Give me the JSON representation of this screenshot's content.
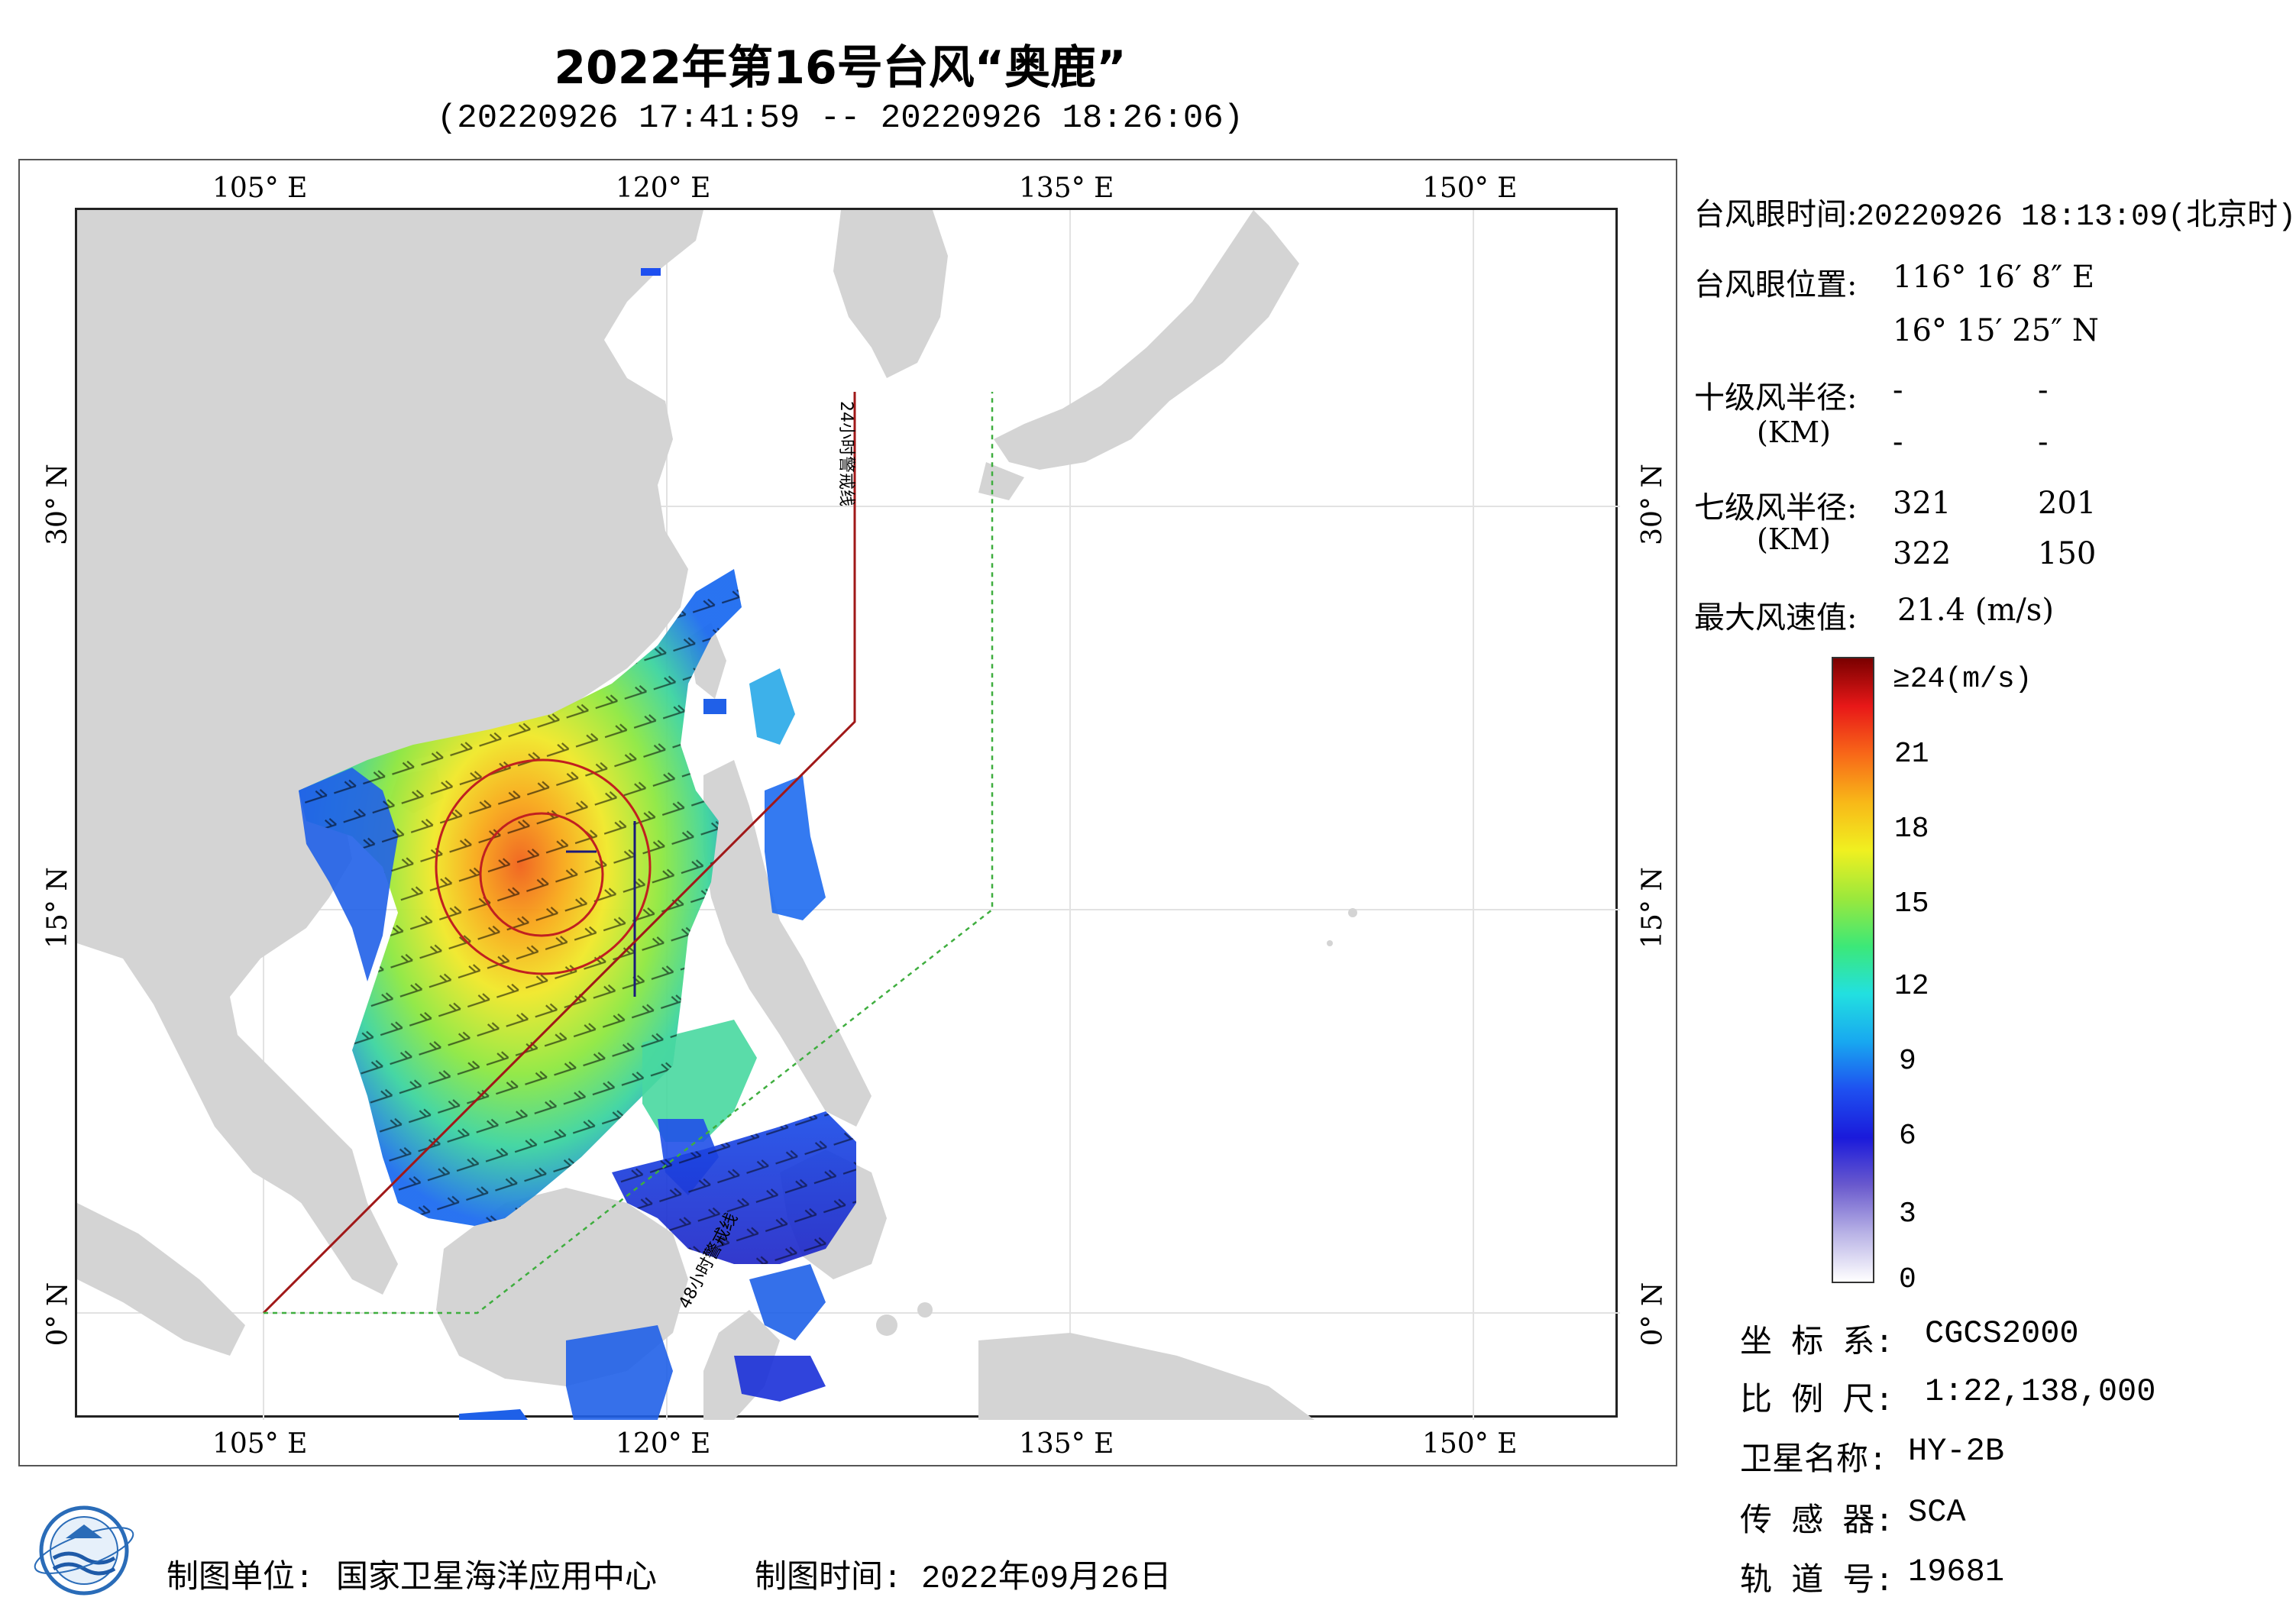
{
  "title": "2022年第16号台风“奥鹿”",
  "subtitle": "(20220926 17:41:59 -- 20220926 18:26:06)",
  "map": {
    "lon_labels": [
      "105° E",
      "120° E",
      "135° E",
      "150° E"
    ],
    "lat_labels": [
      "30° N",
      "15° N",
      "0° N"
    ],
    "warning_line_24h": "24小时警戒线",
    "warning_line_48h": "48小时警戒线",
    "colors": {
      "land": "#d4d4d4",
      "warning_24h": "#a01818",
      "warning_48h": "#3fae3f",
      "track": "#8b1010"
    }
  },
  "panel": {
    "eye_time_label": "台风眼时间:",
    "eye_time_value": "20220926 18:13:09(北京时)",
    "eye_pos_label": "台风眼位置:",
    "eye_lon": "116° 16′ 8″ E",
    "eye_lat": "16° 15′ 25″ N",
    "r10_label": "十级风半径:",
    "r10_unit": "(KM)",
    "r10_values": [
      "-",
      "-",
      "-",
      "-"
    ],
    "r7_label": "七级风半径:",
    "r7_unit": "(KM)",
    "r7_values": [
      "321",
      "201",
      "322",
      "150"
    ],
    "max_wind_label": "最大风速值:",
    "max_wind_value": "21.4  (m/s)"
  },
  "colorbar": {
    "labels": [
      "≥24(m/s)",
      "21",
      "18",
      "15",
      "12",
      "9",
      "6",
      "3",
      "0"
    ],
    "stops": [
      "#ffffff",
      "#b9b3e6",
      "#6a5acd",
      "#1a1adb",
      "#1e50f0",
      "#18a8f0",
      "#22e0e0",
      "#3ce878",
      "#9be83c",
      "#f0f020",
      "#f8b818",
      "#f86818",
      "#e81818",
      "#7a0000"
    ]
  },
  "info": {
    "crs_label": "坐 标 系:",
    "crs_value": "CGCS2000",
    "scale_label": "比 例 尺:",
    "scale_value": "1:22,138,000",
    "sat_label": "卫星名称:",
    "sat_value": "HY-2B",
    "sensor_label": "传 感 器:",
    "sensor_value": "SCA",
    "orbit_label": "轨 道 号:",
    "orbit_value": "19681"
  },
  "footer": {
    "producer_label": "制图单位:",
    "producer_value": "国家卫星海洋应用中心",
    "date_label": "制图时间:",
    "date_value": "2022年09月26日"
  }
}
